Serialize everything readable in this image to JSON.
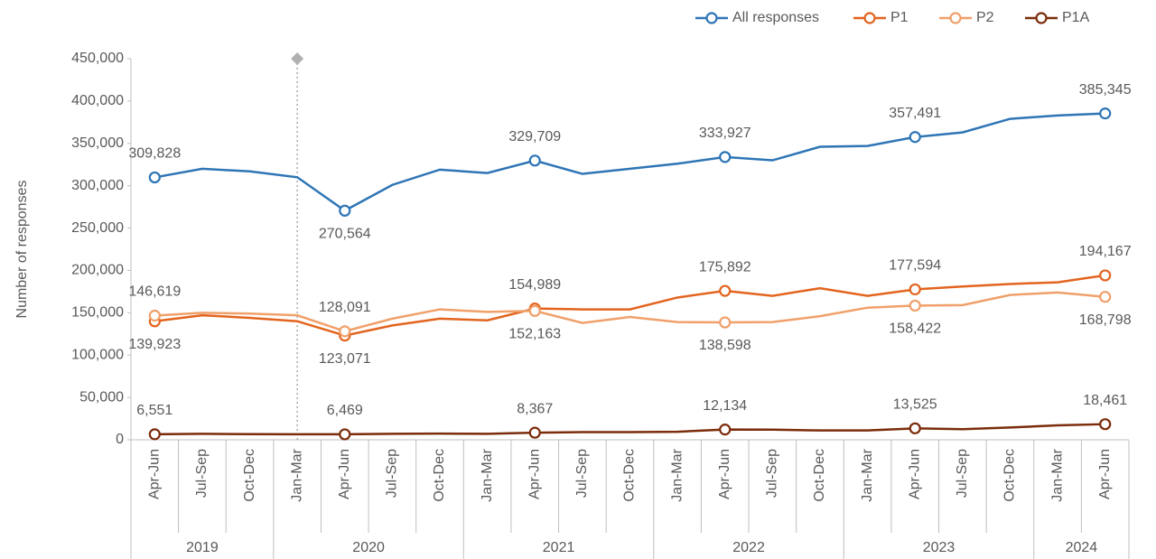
{
  "chart_data": {
    "type": "line",
    "y_label": "Number of responses",
    "categories": [
      "Apr-Jun",
      "Jul-Sep",
      "Oct-Dec",
      "Jan-Mar",
      "Apr-Jun",
      "Jul-Sep",
      "Oct-Dec",
      "Jan-Mar",
      "Apr-Jun",
      "Jul-Sep",
      "Oct-Dec",
      "Jan-Mar",
      "Apr-Jun",
      "Jul-Sep",
      "Oct-Dec",
      "Jan-Mar",
      "Apr-Jun",
      "Jul-Sep",
      "Oct-Dec",
      "Jan-Mar",
      "Apr-Jun"
    ],
    "year_groups": [
      {
        "label": "2019",
        "span": 3
      },
      {
        "label": "2020",
        "span": 4
      },
      {
        "label": "2021",
        "span": 4
      },
      {
        "label": "2022",
        "span": 4
      },
      {
        "label": "2023",
        "span": 4
      },
      {
        "label": "2024",
        "span": 2
      }
    ],
    "ylim": [
      0,
      450000
    ],
    "yticks": [
      {
        "value": 0,
        "label": "0"
      },
      {
        "value": 50000,
        "label": "50,000"
      },
      {
        "value": 100000,
        "label": "100,000"
      },
      {
        "value": 150000,
        "label": "150,000"
      },
      {
        "value": 200000,
        "label": "200,000"
      },
      {
        "value": 250000,
        "label": "250,000"
      },
      {
        "value": 300000,
        "label": "300,000"
      },
      {
        "value": 350000,
        "label": "350,000"
      },
      {
        "value": 400000,
        "label": "400,000"
      },
      {
        "value": 450000,
        "label": "450,000"
      }
    ],
    "legend": "top-right",
    "series": [
      {
        "name": "All responses",
        "color": "#2e75b6",
        "values": [
          309828,
          320000,
          317000,
          310000,
          270564,
          301000,
          319000,
          315000,
          329709,
          314000,
          320000,
          326000,
          333927,
          330000,
          346000,
          347000,
          357491,
          363000,
          379000,
          383000,
          385345
        ],
        "value_labels": [
          "309,828",
          null,
          null,
          null,
          "270,564",
          null,
          null,
          null,
          "329,709",
          null,
          null,
          null,
          "333,927",
          null,
          null,
          null,
          "357,491",
          null,
          null,
          null,
          "385,345"
        ]
      },
      {
        "name": "P1",
        "color": "#e2641f",
        "values": [
          139923,
          147000,
          144000,
          140000,
          123071,
          135000,
          143000,
          141000,
          154989,
          154000,
          154000,
          168000,
          175892,
          170000,
          179000,
          170000,
          177594,
          181000,
          184000,
          186000,
          194167
        ],
        "value_labels": [
          "139,923",
          null,
          null,
          null,
          "123,071",
          null,
          null,
          null,
          "154,989",
          null,
          null,
          null,
          "175,892",
          null,
          null,
          null,
          "177,594",
          null,
          null,
          null,
          "194,167"
        ]
      },
      {
        "name": "P2",
        "color": "#f0a06a",
        "values": [
          146619,
          150000,
          149000,
          147000,
          128091,
          143000,
          154000,
          151000,
          152163,
          138000,
          145000,
          139000,
          138598,
          139000,
          146000,
          156000,
          158422,
          159000,
          171000,
          174000,
          168798
        ],
        "value_labels": [
          "146,619",
          null,
          null,
          null,
          "128,091",
          null,
          null,
          null,
          "152,163",
          null,
          null,
          null,
          "138,598",
          null,
          null,
          null,
          "158,422",
          null,
          null,
          null,
          "168,798"
        ]
      },
      {
        "name": "P1A",
        "color": "#7b2c0b",
        "values": [
          6551,
          7000,
          6700,
          6500,
          6469,
          7000,
          7300,
          7000,
          8367,
          9000,
          9000,
          9500,
          12134,
          12000,
          11000,
          11000,
          13525,
          12500,
          14500,
          17000,
          18461
        ],
        "value_labels": [
          "6,551",
          null,
          null,
          null,
          "6,469",
          null,
          null,
          null,
          "8,367",
          null,
          null,
          null,
          "12,134",
          null,
          null,
          null,
          "13,525",
          null,
          null,
          null,
          "18,461"
        ]
      }
    ]
  }
}
